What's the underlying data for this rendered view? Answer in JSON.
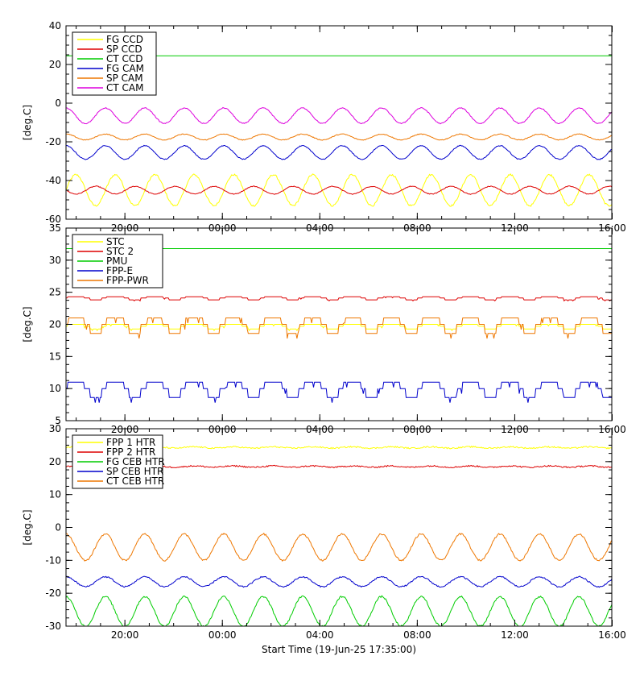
{
  "x_axis": {
    "label": "Start Time (19-Jun-25 17:35:00)",
    "ticks": [
      "20:00",
      "00:00",
      "04:00",
      "08:00",
      "12:00",
      "16:00"
    ],
    "tick_hours": [
      2.4167,
      6.4167,
      10.4167,
      14.4167,
      18.4167,
      22.4167
    ],
    "range_hours": [
      0,
      22.4
    ]
  },
  "chart_data": [
    {
      "type": "line",
      "ylabel": "[deg.C]",
      "ylim": [
        -60,
        40
      ],
      "yticks": [
        -60,
        -40,
        -20,
        0,
        20,
        40
      ],
      "legend_position": "top-left",
      "series": [
        {
          "name": "FG CCD",
          "color": "#ffff00",
          "mean": -45,
          "amplitude": 8,
          "period_hours": 1.62,
          "phase": 0.0
        },
        {
          "name": "SP CCD",
          "color": "#dd0000",
          "mean": -45,
          "amplitude": 2,
          "period_hours": 1.62,
          "phase": 3.1
        },
        {
          "name": "CT CCD",
          "color": "#00cc00",
          "mean": 24.5,
          "amplitude": 0,
          "period_hours": 1.62,
          "phase": 0.0
        },
        {
          "name": "FG CAM",
          "color": "#0000cc",
          "mean": -25.5,
          "amplitude": 3.5,
          "period_hours": 1.62,
          "phase": 1.6
        },
        {
          "name": "SP CAM",
          "color": "#ee7700",
          "mean": -17.5,
          "amplitude": 1.5,
          "period_hours": 1.62,
          "phase": 1.6
        },
        {
          "name": "CT CAM",
          "color": "#dd00dd",
          "mean": -6.5,
          "amplitude": 4,
          "period_hours": 1.62,
          "phase": 1.6
        }
      ]
    },
    {
      "type": "line",
      "ylabel": "[deg.C]",
      "ylim": [
        5,
        35
      ],
      "yticks": [
        5,
        10,
        15,
        20,
        25,
        30,
        35
      ],
      "legend_position": "top-left",
      "series": [
        {
          "name": "STC",
          "color": "#ffff00",
          "mean": 19.7,
          "amplitude": 0.3,
          "period_hours": 1.62,
          "phase": 0.0
        },
        {
          "name": "STC 2",
          "color": "#dd0000",
          "mean": 24.1,
          "amplitude": 0.2,
          "period_hours": 1.62,
          "phase": 0.0
        },
        {
          "name": "PMU",
          "color": "#00cc00",
          "mean": 31.8,
          "amplitude": 0,
          "period_hours": 1.62,
          "phase": 0.0
        },
        {
          "name": "FPP-E",
          "color": "#0000cc",
          "mean": 10,
          "amplitude": 1,
          "period_hours": 1.62,
          "phase": 0.0
        },
        {
          "name": "FPP-PWR",
          "color": "#ee7700",
          "mean": 20,
          "amplitude": 1,
          "period_hours": 1.62,
          "phase": 0.0
        }
      ]
    },
    {
      "type": "line",
      "ylabel": "[deg.C]",
      "ylim": [
        -30,
        30
      ],
      "yticks": [
        -30,
        -20,
        -10,
        0,
        10,
        20,
        30
      ],
      "legend_position": "top-left",
      "series": [
        {
          "name": "FPP 1 HTR",
          "color": "#ffff00",
          "mean": 24.3,
          "amplitude": 0.2,
          "period_hours": 1.62,
          "phase": 0.0
        },
        {
          "name": "FPP 2 HTR",
          "color": "#dd0000",
          "mean": 18.5,
          "amplitude": 0.2,
          "period_hours": 1.62,
          "phase": 0.0
        },
        {
          "name": "FG CEB HTR",
          "color": "#00cc00",
          "mean": -25.5,
          "amplitude": 4.5,
          "period_hours": 1.62,
          "phase": 1.6
        },
        {
          "name": "SP CEB HTR",
          "color": "#0000cc",
          "mean": -16.5,
          "amplitude": 1.5,
          "period_hours": 1.62,
          "phase": 1.6
        },
        {
          "name": "CT CEB HTR",
          "color": "#ee7700",
          "mean": -6,
          "amplitude": 4,
          "period_hours": 1.62,
          "phase": 1.6
        }
      ]
    }
  ]
}
